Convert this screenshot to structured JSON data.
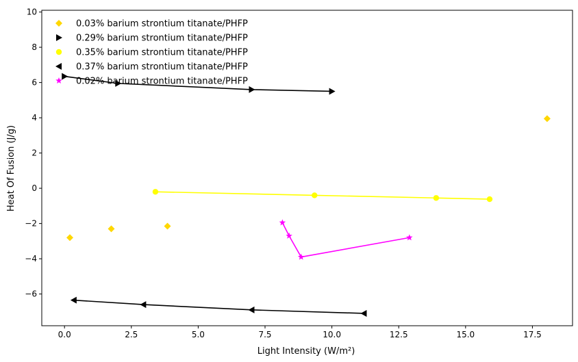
{
  "chart_data": {
    "type": "line",
    "title": "",
    "xlabel": "Light Intensity (W/m²)",
    "ylabel": "Heat Of Fusion (J/g)",
    "xlim": [
      -0.85,
      19.0
    ],
    "ylim": [
      -7.8,
      10.1
    ],
    "xticks": [
      0.0,
      2.5,
      5.0,
      7.5,
      10.0,
      12.5,
      15.0,
      17.5
    ],
    "xtick_labels": [
      "0.0",
      "2.5",
      "5.0",
      "7.5",
      "10.0",
      "12.5",
      "15.0",
      "17.5"
    ],
    "yticks": [
      -6,
      -4,
      -2,
      0,
      2,
      4,
      6,
      8,
      10
    ],
    "ytick_labels": [
      "−6",
      "−4",
      "−2",
      "0",
      "2",
      "4",
      "6",
      "8",
      "10"
    ],
    "grid": false,
    "legend_position": "top-left",
    "series": [
      {
        "name": "0.03% barium strontium titanate/PHFP",
        "color": "#ffd700",
        "marker": "diamond",
        "line": false,
        "x": [
          0.2,
          1.75,
          3.85,
          18.05
        ],
        "y": [
          -2.8,
          -2.3,
          -2.15,
          3.95
        ]
      },
      {
        "name": "0.29% barium strontium titanate/PHFP",
        "color": "#000000",
        "marker": "triangle-right",
        "line": true,
        "x": [
          0.0,
          2.0,
          7.0,
          10.0
        ],
        "y": [
          6.35,
          5.95,
          5.6,
          5.5
        ]
      },
      {
        "name": "0.35% barium strontium titanate/PHFP",
        "color": "#ffff00",
        "marker": "circle",
        "line": true,
        "x": [
          3.4,
          9.35,
          13.9,
          15.9
        ],
        "y": [
          -0.2,
          -0.4,
          -0.55,
          -0.62
        ]
      },
      {
        "name": "0.37% barium strontium titanate/PHFP",
        "color": "#000000",
        "marker": "triangle-left",
        "line": true,
        "x": [
          0.35,
          2.95,
          7.0,
          11.2
        ],
        "y": [
          -6.35,
          -6.6,
          -6.9,
          -7.1
        ]
      },
      {
        "name": "0.02% barium strontium titanate/PHFP",
        "color": "#ff00ff",
        "marker": "star",
        "line": true,
        "x": [
          8.15,
          8.4,
          8.85,
          12.9
        ],
        "y": [
          -1.95,
          -2.7,
          -3.9,
          -2.8
        ]
      }
    ]
  }
}
